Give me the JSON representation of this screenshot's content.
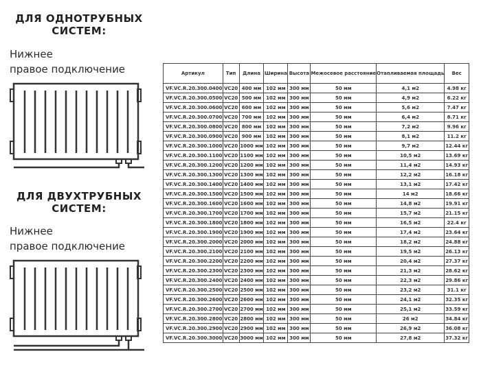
{
  "left": {
    "single_title_1": "ДЛЯ ОДНОТРУБНЫХ",
    "single_title_2": "СИСТЕМ:",
    "single_sub_1": "Нижнее",
    "single_sub_2": "правое подключение",
    "double_title_1": "ДЛЯ ДВУХТРУБНЫХ",
    "double_title_2": "СИСТЕМ:",
    "double_sub_1": "Нижнее",
    "double_sub_2": "правое подключение"
  },
  "table": {
    "headers": [
      "Артикул",
      "Тип",
      "Длина",
      "Ширина",
      "Высота",
      "Межосевое расстояние",
      "Отапливаемая площадь",
      "Вес"
    ],
    "rows": [
      [
        "VF.VC.R.20.300.0400",
        "VC20",
        "400 мм",
        "102 мм",
        "300 мм",
        "50 мм",
        "4,1 м2",
        "4.98 кг"
      ],
      [
        "VF.VC.R.20.300.0500",
        "VC20",
        "500 мм",
        "102 мм",
        "300 мм",
        "50 мм",
        "4,9 м2",
        "6.22 кг"
      ],
      [
        "VF.VC.R.20.300.0600",
        "VC20",
        "600 мм",
        "102 мм",
        "300 мм",
        "50 мм",
        "5,6 м2",
        "7.47 кг"
      ],
      [
        "VF.VC.R.20.300.0700",
        "VC20",
        "700 мм",
        "102 мм",
        "300 мм",
        "50 мм",
        "6,4 м2",
        "8.71 кг"
      ],
      [
        "VF.VC.R.20.300.0800",
        "VC20",
        "800 мм",
        "102 мм",
        "300 мм",
        "50 мм",
        "7,2 м2",
        "9.96 кг"
      ],
      [
        "VF.VC.R.20.300.0900",
        "VC20",
        "900 мм",
        "102 мм",
        "300 мм",
        "50 мм",
        "8,1 м2",
        "11.2 кг"
      ],
      [
        "VF.VC.R.20.300.1000",
        "VC20",
        "1000 мм",
        "102 мм",
        "300 мм",
        "50 мм",
        "9,7 м2",
        "12.44 кг"
      ],
      [
        "VF.VC.R.20.300.1100",
        "VC20",
        "1100 мм",
        "102 мм",
        "300 мм",
        "50 мм",
        "10,5 м2",
        "13.69 кг"
      ],
      [
        "VF.VC.R.20.300.1200",
        "VC20",
        "1200 мм",
        "102 мм",
        "300 мм",
        "50 мм",
        "11,4 м2",
        "14.93 кг"
      ],
      [
        "VF.VC.R.20.300.1300",
        "VC20",
        "1300 мм",
        "102 мм",
        "300 мм",
        "50 мм",
        "12,2 м2",
        "16.18 кг"
      ],
      [
        "VF.VC.R.20.300.1400",
        "VC20",
        "1400 мм",
        "102 мм",
        "300 мм",
        "50 мм",
        "13,1 м2",
        "17.42 кг"
      ],
      [
        "VF.VC.R.20.300.1500",
        "VC20",
        "1500 мм",
        "102 мм",
        "300 мм",
        "50 мм",
        "14 м2",
        "18.66 кг"
      ],
      [
        "VF.VC.R.20.300.1600",
        "VC20",
        "1600 мм",
        "102 мм",
        "300 мм",
        "50 мм",
        "14,8 м2",
        "19.91 кг"
      ],
      [
        "VF.VC.R.20.300.1700",
        "VC20",
        "1700 мм",
        "102 мм",
        "300 мм",
        "50 мм",
        "15,7 м2",
        "21.15 кг"
      ],
      [
        "VF.VC.R.20.300.1800",
        "VC20",
        "1800 мм",
        "102 мм",
        "300 мм",
        "50 мм",
        "16,5 м2",
        "22.4 кг"
      ],
      [
        "VF.VC.R.20.300.1900",
        "VC20",
        "1900 мм",
        "102 мм",
        "300 мм",
        "50 мм",
        "17,4 м2",
        "23.64 кг"
      ],
      [
        "VF.VC.R.20.300.2000",
        "VC20",
        "2000 мм",
        "102 мм",
        "300 мм",
        "50 мм",
        "18,2 м2",
        "24.88 кг"
      ],
      [
        "VF.VC.R.20.300.2100",
        "VC20",
        "2100 мм",
        "102 мм",
        "300 мм",
        "50 мм",
        "19,5 м2",
        "26.13 кг"
      ],
      [
        "VF.VC.R.20.300.2200",
        "VC20",
        "2200 мм",
        "102 мм",
        "300 мм",
        "50 мм",
        "20,4 м2",
        "27.37 кг"
      ],
      [
        "VF.VC.R.20.300.2300",
        "VC20",
        "2300 мм",
        "102 мм",
        "300 мм",
        "50 мм",
        "21,3 м2",
        "28.62 кг"
      ],
      [
        "VF.VC.R.20.300.2400",
        "VC20",
        "2400 мм",
        "102 мм",
        "300 мм",
        "50 мм",
        "22,3 м2",
        "29.86 кг"
      ],
      [
        "VF.VC.R.20.300.2500",
        "VC20",
        "2500 мм",
        "102 мм",
        "300 мм",
        "50 мм",
        "23,2 м2",
        "31.1 кг"
      ],
      [
        "VF.VC.R.20.300.2600",
        "VC20",
        "2600 мм",
        "102 мм",
        "300 мм",
        "50 мм",
        "24,1 м2",
        "32.35 кг"
      ],
      [
        "VF.VC.R.20.300.2700",
        "VC20",
        "2700 мм",
        "102 мм",
        "300 мм",
        "50 мм",
        "25,1 м2",
        "33.59 кг"
      ],
      [
        "VF.VC.R.20.300.2800",
        "VC20",
        "2800 мм",
        "102 мм",
        "300 мм",
        "50 мм",
        "26 м2",
        "34.84 кг"
      ],
      [
        "VF.VC.R.20.300.2900",
        "VC20",
        "2900 мм",
        "102 мм",
        "300 мм",
        "50 мм",
        "26,9 м2",
        "36.08 кг"
      ],
      [
        "VF.VC.R.20.300.3000",
        "VC20",
        "3000 мм",
        "102 мм",
        "300 мм",
        "50 мм",
        "27,8 м2",
        "37.32 кг"
      ]
    ]
  }
}
